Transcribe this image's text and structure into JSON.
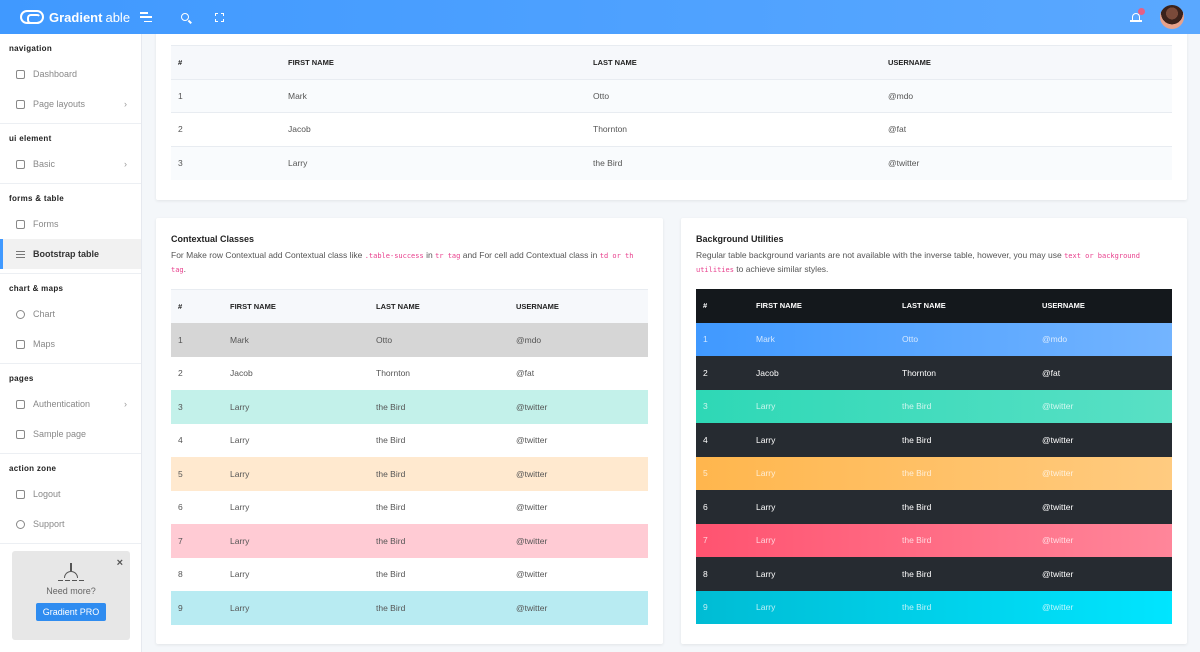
{
  "header": {
    "brand_name": "Gradient",
    "brand_sub": "able",
    "icons": [
      "menu-icon",
      "search-icon",
      "fullscreen-icon",
      "bell-icon",
      "avatar"
    ],
    "accent_color": "#4099ff"
  },
  "sidebar": {
    "groups": [
      {
        "caption": "navigation",
        "items": [
          {
            "label": "Dashboard",
            "icon": "home-icon",
            "chevron": false
          },
          {
            "label": "Page layouts",
            "icon": "layout-icon",
            "chevron": true
          }
        ]
      },
      {
        "caption": "ui element",
        "items": [
          {
            "label": "Basic",
            "icon": "box-icon",
            "chevron": true
          }
        ]
      },
      {
        "caption": "forms & table",
        "items": [
          {
            "label": "Forms",
            "icon": "file-icon",
            "chevron": false
          },
          {
            "label": "Bootstrap table",
            "icon": "list-icon",
            "chevron": false,
            "active": true
          }
        ]
      },
      {
        "caption": "chart & maps",
        "items": [
          {
            "label": "Chart",
            "icon": "pie-chart-icon",
            "chevron": false
          },
          {
            "label": "Maps",
            "icon": "map-icon",
            "chevron": false
          }
        ]
      },
      {
        "caption": "pages",
        "items": [
          {
            "label": "Authentication",
            "icon": "lock-icon",
            "chevron": true
          },
          {
            "label": "Sample page",
            "icon": "sidebar-icon",
            "chevron": false
          }
        ]
      },
      {
        "caption": "action zone",
        "items": [
          {
            "label": "Logout",
            "icon": "logout-icon",
            "chevron": false
          },
          {
            "label": "Support",
            "icon": "help-icon",
            "chevron": false
          }
        ]
      }
    ],
    "promo": {
      "text": "Need more?",
      "button": "Gradient PRO",
      "close": "×"
    }
  },
  "columns": [
    "#",
    "FIRST NAME",
    "LAST NAME",
    "USERNAME"
  ],
  "top_table": {
    "rows": [
      [
        "1",
        "Mark",
        "Otto",
        "@mdo"
      ],
      [
        "2",
        "Jacob",
        "Thornton",
        "@fat"
      ],
      [
        "3",
        "Larry",
        "the Bird",
        "@twitter"
      ]
    ]
  },
  "contextual": {
    "title": "Contextual Classes",
    "desc_1": "For Make row Contextual add Contextual class like ",
    "code_1": ".table-success",
    "desc_2": " in ",
    "code_2": "tr tag",
    "desc_3": " and For cell add Contextual class in ",
    "code_3": "td or th tag",
    "desc_4": ".",
    "rows": [
      {
        "cells": [
          "1",
          "Mark",
          "Otto",
          "@mdo"
        ],
        "bg": "#d6d6d6"
      },
      {
        "cells": [
          "2",
          "Jacob",
          "Thornton",
          "@fat"
        ],
        "bg": "#ffffff"
      },
      {
        "cells": [
          "3",
          "Larry",
          "the Bird",
          "@twitter"
        ],
        "bg": "#c3f1ea"
      },
      {
        "cells": [
          "4",
          "Larry",
          "the Bird",
          "@twitter"
        ],
        "bg": "#ffffff"
      },
      {
        "cells": [
          "5",
          "Larry",
          "the Bird",
          "@twitter"
        ],
        "bg": "#ffe9cf"
      },
      {
        "cells": [
          "6",
          "Larry",
          "the Bird",
          "@twitter"
        ],
        "bg": "#ffffff"
      },
      {
        "cells": [
          "7",
          "Larry",
          "the Bird",
          "@twitter"
        ],
        "bg": "#ffcbd4"
      },
      {
        "cells": [
          "8",
          "Larry",
          "the Bird",
          "@twitter"
        ],
        "bg": "#ffffff"
      },
      {
        "cells": [
          "9",
          "Larry",
          "the Bird",
          "@twitter"
        ],
        "bg": "#b8ebf2"
      }
    ]
  },
  "background": {
    "title": "Background Utilities",
    "desc_1": "Regular table background variants are not available with the inverse table, however, you may use ",
    "code_1": "text or background utilities",
    "desc_2": " to achieve similar styles.",
    "rows": [
      {
        "cells": [
          "1",
          "Mark",
          "Otto",
          "@mdo"
        ],
        "bg": "linear-gradient(90deg,#4099ff,#73b4ff)",
        "light": true
      },
      {
        "cells": [
          "2",
          "Jacob",
          "Thornton",
          "@fat"
        ],
        "bg": "#262b31",
        "light": false
      },
      {
        "cells": [
          "3",
          "Larry",
          "the Bird",
          "@twitter"
        ],
        "bg": "linear-gradient(90deg,#2ed8b6,#59e0c5)",
        "light": true
      },
      {
        "cells": [
          "4",
          "Larry",
          "the Bird",
          "@twitter"
        ],
        "bg": "#262b31",
        "light": false
      },
      {
        "cells": [
          "5",
          "Larry",
          "the Bird",
          "@twitter"
        ],
        "bg": "linear-gradient(90deg,#ffb64d,#ffcb80)",
        "light": true
      },
      {
        "cells": [
          "6",
          "Larry",
          "the Bird",
          "@twitter"
        ],
        "bg": "#262b31",
        "light": false
      },
      {
        "cells": [
          "7",
          "Larry",
          "the Bird",
          "@twitter"
        ],
        "bg": "linear-gradient(90deg,#ff5370,#ff869a)",
        "light": true
      },
      {
        "cells": [
          "8",
          "Larry",
          "the Bird",
          "@twitter"
        ],
        "bg": "#262b31",
        "light": false
      },
      {
        "cells": [
          "9",
          "Larry",
          "the Bird",
          "@twitter"
        ],
        "bg": "linear-gradient(90deg,#00bcd4,#00e5ff)",
        "light": true
      }
    ]
  }
}
